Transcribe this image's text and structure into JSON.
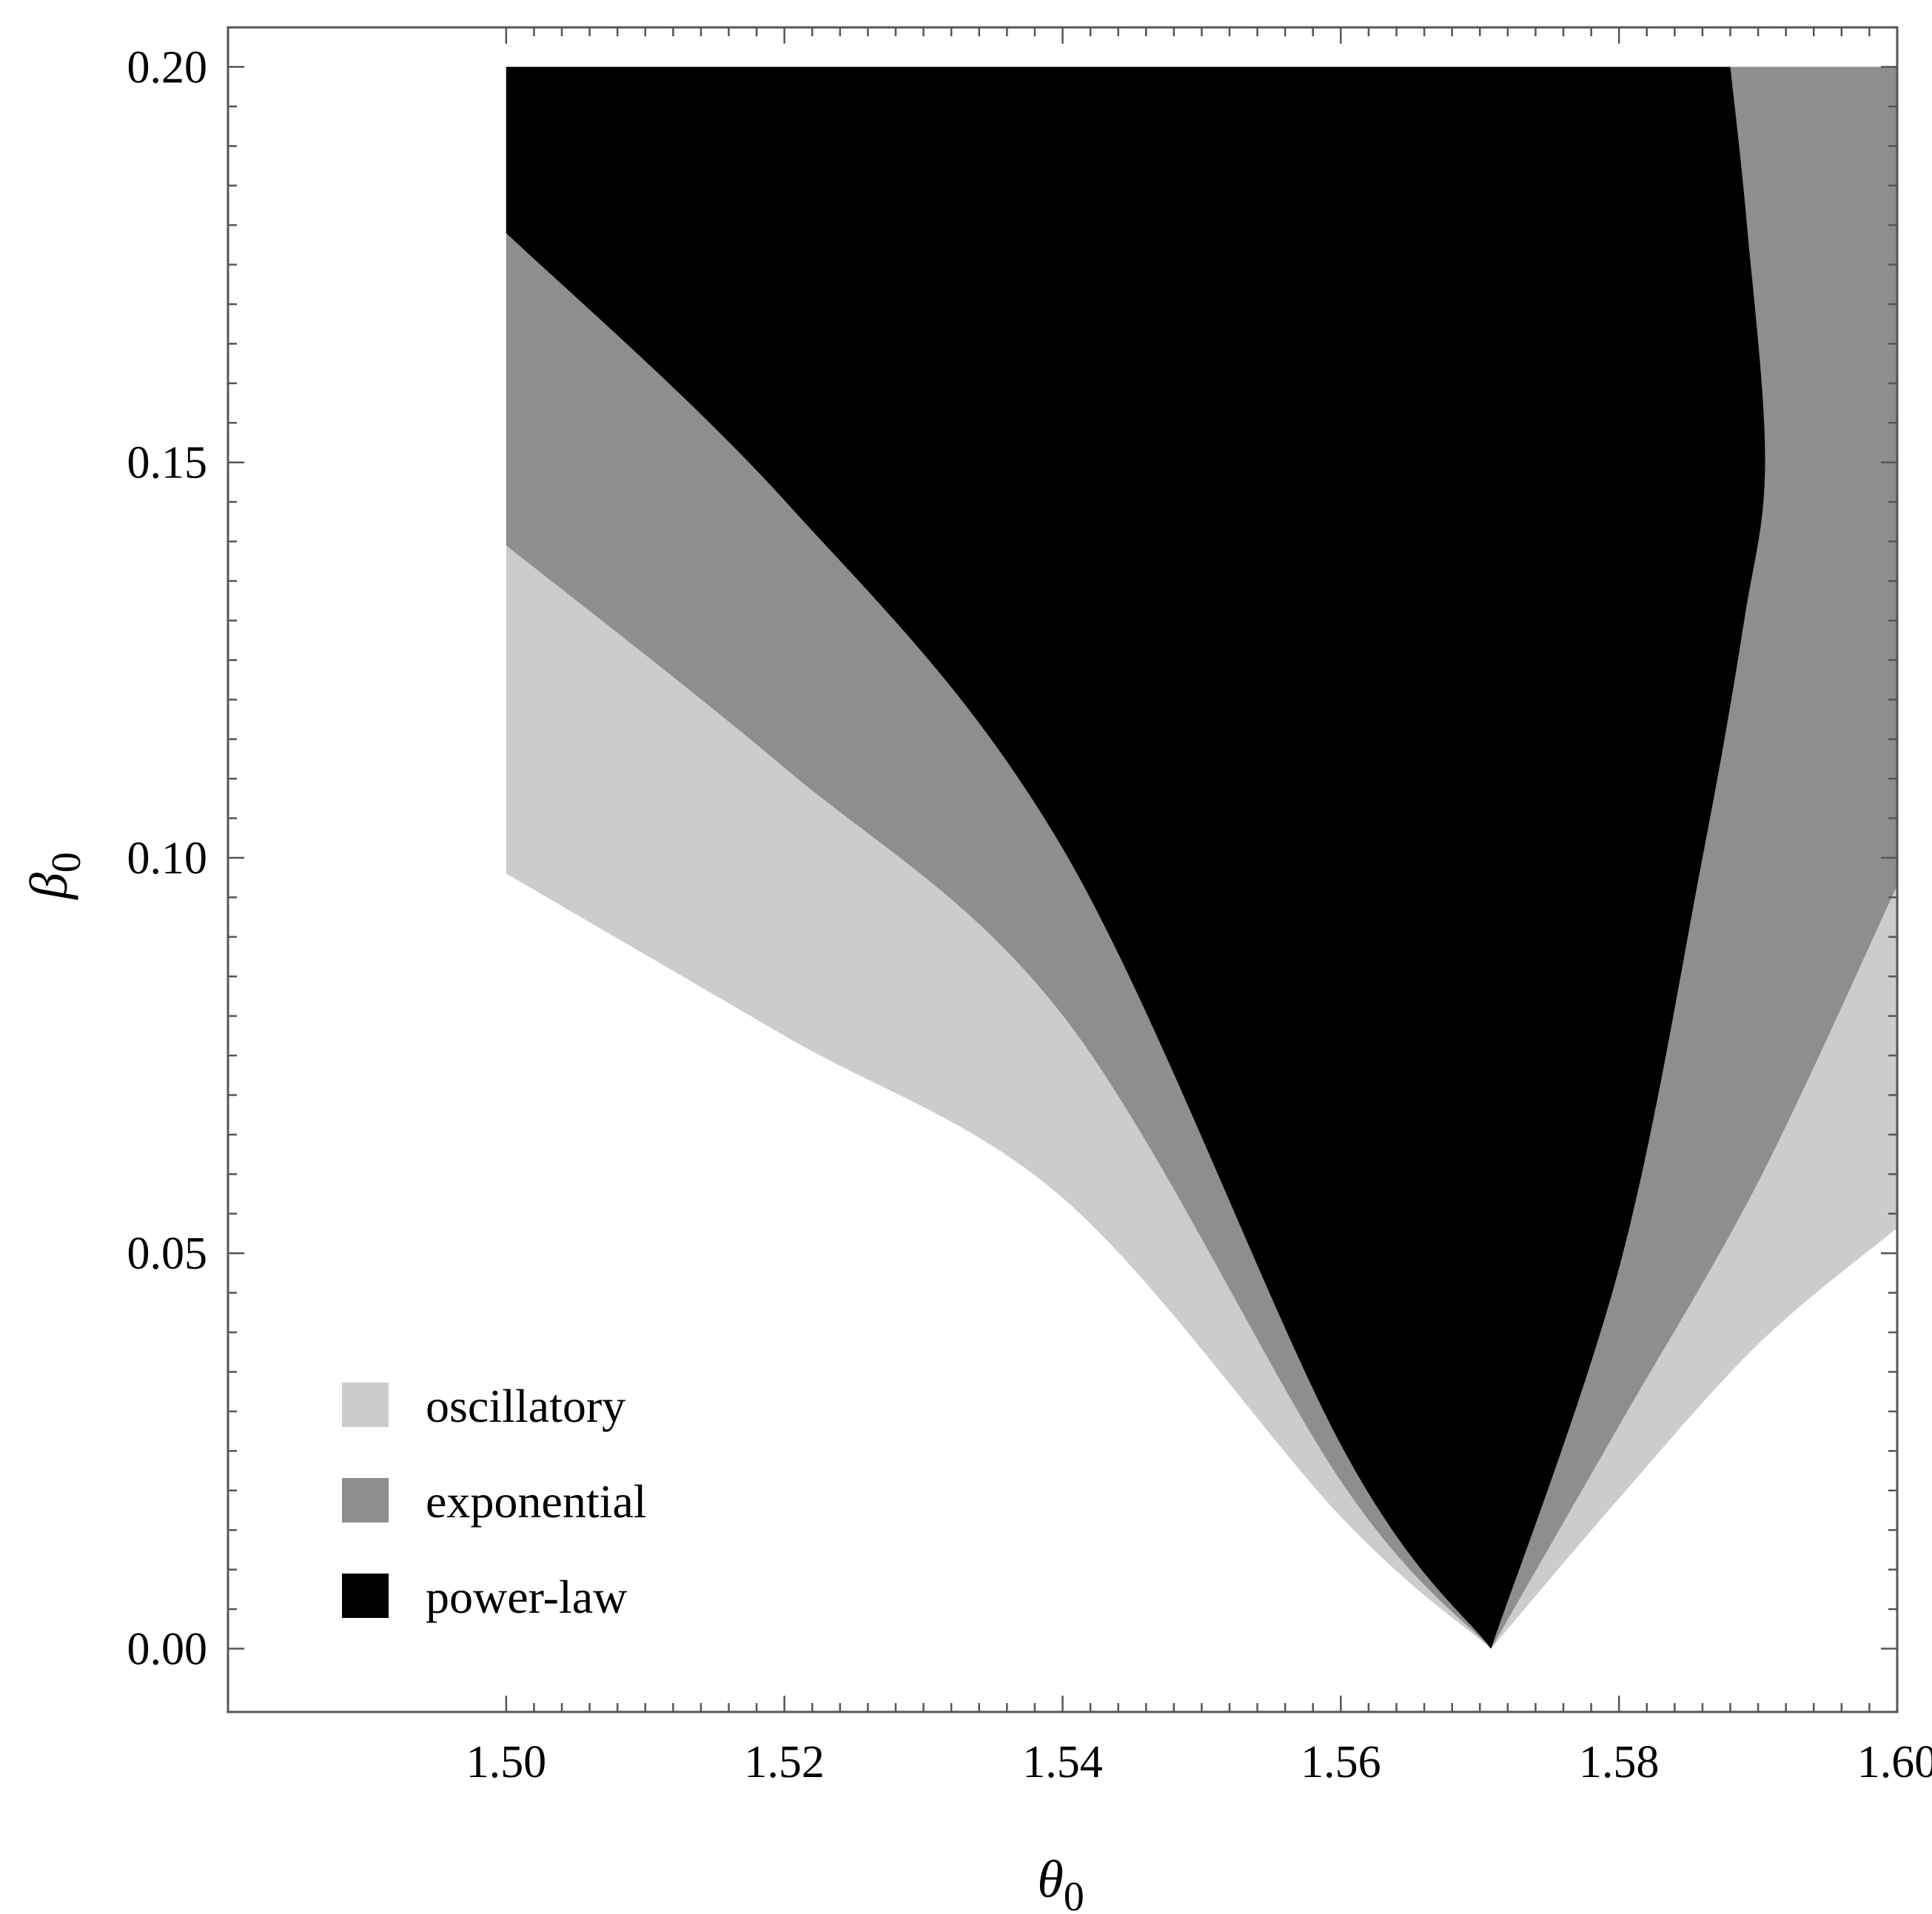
{
  "chart_data": {
    "type": "area",
    "title": "",
    "xlabel": {
      "symbol": "θ",
      "subscript": "0"
    },
    "ylabel": {
      "symbol": "β",
      "subscript": "0"
    },
    "xlim": [
      1.48,
      1.6
    ],
    "ylim": [
      -0.008,
      0.205
    ],
    "plot_range": {
      "x": [
        1.5,
        1.6
      ],
      "y": [
        0,
        0.2
      ]
    },
    "x_ticks": [
      "1.50",
      "1.52",
      "1.54",
      "1.56",
      "1.58",
      "1.60"
    ],
    "y_ticks": [
      "0.00",
      "0.05",
      "0.10",
      "0.15",
      "0.20"
    ],
    "grid": false,
    "legend_position": "bottom-left",
    "series": [
      {
        "name": "oscillatory",
        "color": "#cccccc",
        "lower_boundary": [
          [
            1.5,
            0.098
          ],
          [
            1.52,
            0.0775
          ],
          [
            1.54,
            0.057
          ],
          [
            1.56,
            0.0167
          ],
          [
            1.5708,
            0.0
          ]
        ],
        "upper_boundary": [
          [
            1.5708,
            0.0
          ],
          [
            1.58,
            0.019
          ],
          [
            1.59,
            0.0385
          ],
          [
            1.6,
            0.0532
          ]
        ]
      },
      {
        "name": "exponential",
        "color": "#8e8e8e",
        "lower_boundary": [
          [
            1.5,
            0.1395
          ],
          [
            1.52,
            0.1114
          ],
          [
            1.54,
            0.0801
          ],
          [
            1.56,
            0.0212
          ],
          [
            1.5708,
            0.0
          ]
        ],
        "upper_boundary": [
          [
            1.5708,
            0.0
          ],
          [
            1.58,
            0.0282
          ],
          [
            1.59,
            0.059
          ],
          [
            1.6,
            0.0965
          ]
        ]
      },
      {
        "name": "power-law",
        "color": "#000000",
        "lower_boundary": [
          [
            1.5,
            0.179
          ],
          [
            1.52,
            0.1452
          ],
          [
            1.54,
            0.1012
          ],
          [
            1.56,
            0.0258
          ],
          [
            1.5708,
            0.0
          ]
        ],
        "upper_boundary": [
          [
            1.5708,
            0.0
          ],
          [
            1.58,
            0.0481
          ],
          [
            1.586,
            0.1
          ],
          [
            1.589,
            0.13
          ],
          [
            1.5905,
            0.15
          ],
          [
            1.5892,
            0.18
          ],
          [
            1.588,
            0.2
          ]
        ]
      }
    ]
  }
}
